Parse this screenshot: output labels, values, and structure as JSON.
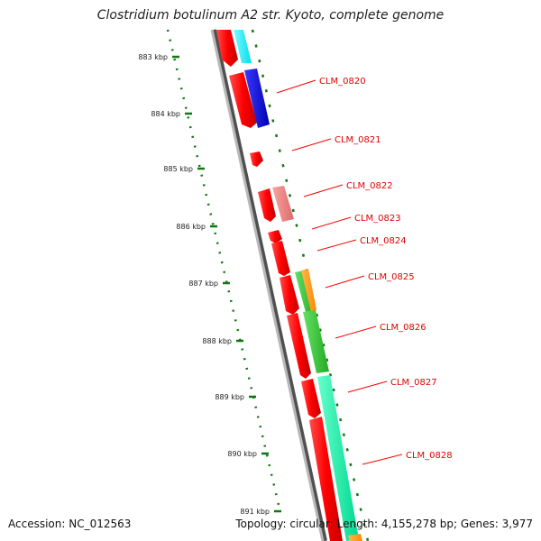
{
  "header": {
    "title": "Clostridium botulinum A2 str. Kyoto, complete genome"
  },
  "footer": {
    "accession": "Accession: NC_012563",
    "topology": "Topology: circular; Length: 4,155,278 bp; Genes: 3,977"
  },
  "scale": {
    "ticks": [
      "883 kbp",
      "884 kbp",
      "885 kbp",
      "886 kbp",
      "887 kbp",
      "888 kbp",
      "889 kbp",
      "890 kbp",
      "891 kbp"
    ]
  },
  "genes": {
    "labels": [
      "CLM_0820",
      "CLM_0821",
      "CLM_0822",
      "CLM_0823",
      "CLM_0824",
      "CLM_0825",
      "CLM_0826",
      "CLM_0827",
      "CLM_0828"
    ]
  },
  "colors": {
    "cds": "#ff0000",
    "cog_cyan": "#00f0ff",
    "cog_blue": "#0000dd",
    "cog_pink": "#f08080",
    "cog_green": "#33cc33",
    "cog_orange": "#ff9900",
    "cog_aqua": "#00ee99",
    "backbone": "#808080",
    "scale": "#117711"
  }
}
